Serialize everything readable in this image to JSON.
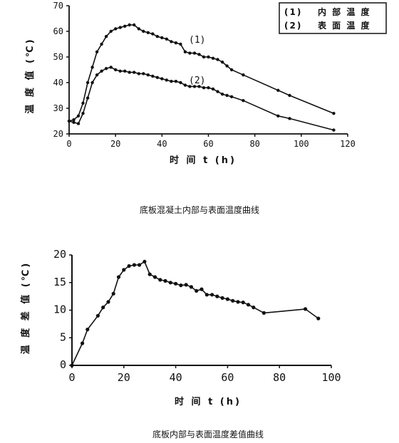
{
  "chart_data": [
    {
      "type": "line",
      "caption": "底板混凝土内部与表面温度曲线",
      "xlabel": "时 间 t (h)",
      "ylabel": "温 度 值 (℃)",
      "xlim": [
        0,
        120
      ],
      "ylim": [
        20,
        70
      ],
      "xticks": [
        "0",
        "20",
        "40",
        "60",
        "80",
        "100",
        "120"
      ],
      "yticks": [
        "20",
        "30",
        "40",
        "50",
        "60",
        "70"
      ],
      "grid": false,
      "legend_position": "top-right",
      "legend": [
        {
          "marker": "(1)",
          "label": "内 部 温 度"
        },
        {
          "marker": "(2)",
          "label": "表 面 温 度"
        }
      ],
      "annotations": [
        "(1)",
        "(2)"
      ],
      "series": [
        {
          "name": "(1) 内部温度",
          "x": [
            0,
            2,
            4,
            6,
            8,
            10,
            12,
            14,
            16,
            18,
            20,
            22,
            24,
            26,
            28,
            30,
            32,
            34,
            36,
            38,
            40,
            42,
            44,
            46,
            48,
            50,
            52,
            54,
            56,
            58,
            60,
            62,
            64,
            66,
            68,
            70,
            75,
            90,
            95,
            114
          ],
          "y": [
            25,
            25.5,
            27,
            32,
            40,
            46,
            52,
            55,
            58,
            60,
            61,
            61.5,
            62,
            62.5,
            62.5,
            61,
            60,
            59.5,
            59,
            58,
            57.5,
            57,
            56,
            55.5,
            55,
            52,
            51.5,
            51.5,
            51,
            50,
            50,
            49.5,
            49,
            48,
            46.5,
            45,
            43,
            37,
            35,
            28
          ]
        },
        {
          "name": "(2) 表面温度",
          "x": [
            0,
            2,
            4,
            6,
            8,
            10,
            12,
            14,
            16,
            18,
            20,
            22,
            24,
            26,
            28,
            30,
            32,
            34,
            36,
            38,
            40,
            42,
            44,
            46,
            48,
            50,
            52,
            54,
            56,
            58,
            60,
            62,
            64,
            66,
            68,
            70,
            75,
            90,
            95,
            114
          ],
          "y": [
            25,
            24.5,
            24,
            28,
            34,
            40,
            43,
            44.5,
            45.5,
            46,
            45,
            44.5,
            44.5,
            44,
            44,
            43.5,
            43.5,
            43,
            42.5,
            42,
            41.5,
            41,
            40.5,
            40.5,
            40,
            39,
            38.5,
            38.5,
            38.5,
            38,
            38,
            37.5,
            36.5,
            35.5,
            35,
            34.5,
            33,
            27,
            26,
            21.5
          ]
        }
      ]
    },
    {
      "type": "line",
      "caption": "底板内部与表面温度差值曲线",
      "xlabel": "时 间 t (h)",
      "ylabel": "温 度 差 值 (℃)",
      "xlim": [
        0,
        100
      ],
      "ylim": [
        0,
        20
      ],
      "xticks": [
        "0",
        "20",
        "40",
        "60",
        "80",
        "100"
      ],
      "yticks": [
        "0",
        "5",
        "10",
        "15",
        "20"
      ],
      "grid": false,
      "series": [
        {
          "x": [
            0,
            4,
            6,
            10,
            12,
            14,
            16,
            18,
            20,
            22,
            24,
            26,
            28,
            30,
            32,
            34,
            36,
            38,
            40,
            42,
            44,
            46,
            48,
            50,
            52,
            54,
            56,
            58,
            60,
            62,
            64,
            66,
            68,
            70,
            74,
            90,
            95
          ],
          "y": [
            0,
            4,
            6.5,
            9,
            10.5,
            11.5,
            13,
            16,
            17.3,
            18,
            18.2,
            18.2,
            18.8,
            16.5,
            16,
            15.5,
            15.3,
            15,
            14.8,
            14.5,
            14.6,
            14.2,
            13.5,
            13.8,
            12.8,
            12.8,
            12.5,
            12.2,
            12,
            11.7,
            11.5,
            11.4,
            11,
            10.5,
            9.5,
            10.2,
            8.5
          ]
        }
      ]
    }
  ]
}
